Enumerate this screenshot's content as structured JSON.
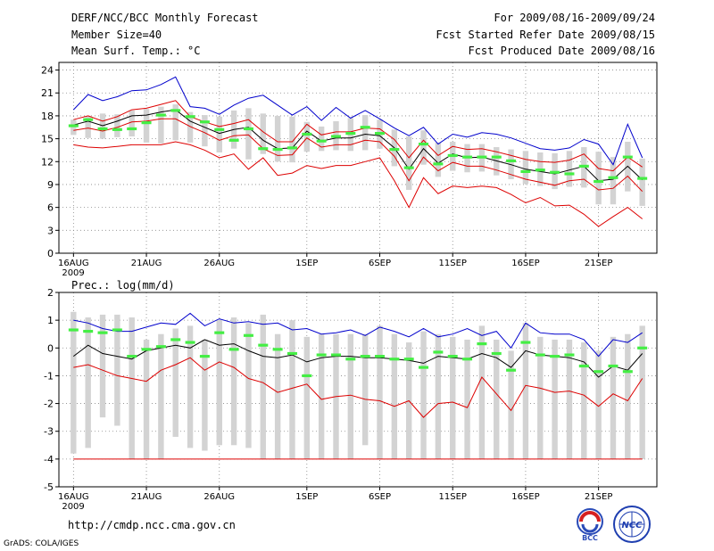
{
  "header": {
    "title": "DERF/NCC/BCC Monthly Forecast",
    "member_size": "Member Size=40",
    "variable": "Mean Surf. Temp.: °C",
    "period": "For 2009/08/16-2009/09/24",
    "fcst_started": "Fcst Started Refer Date 2009/08/15",
    "fcst_produced": "Fcst Produced Date 2009/08/16"
  },
  "footer": {
    "url": "http://cmdp.ncc.cma.gov.cn",
    "grads": "GrADS: COLA/IGES",
    "logo_left": "BCC",
    "logo_right": "NCC"
  },
  "colors": {
    "max_line": "#0000cc",
    "min_line": "#dd0000",
    "mean_line": "#000000",
    "spread_lines": "#dd0000",
    "box": "#d3d3d3",
    "obs": "#44ee44"
  },
  "chart_data": [
    {
      "type": "line",
      "title": "Mean Surf. Temp.: °C",
      "x_ticks": [
        {
          "day": 1,
          "label": "16AUG",
          "sub": "2009"
        },
        {
          "day": 6,
          "label": "21AUG"
        },
        {
          "day": 11,
          "label": "26AUG"
        },
        {
          "day": 17,
          "label": "1SEP"
        },
        {
          "day": 22,
          "label": "6SEP"
        },
        {
          "day": 27,
          "label": "11SEP"
        },
        {
          "day": 32,
          "label": "16SEP"
        },
        {
          "day": 37,
          "label": "21SEP"
        }
      ],
      "xlim": [
        0,
        41
      ],
      "ylim": [
        0,
        25
      ],
      "yticks": [
        0,
        3,
        6,
        9,
        12,
        15,
        18,
        21,
        24
      ],
      "grid": true,
      "days": [
        1,
        2,
        3,
        4,
        5,
        6,
        7,
        8,
        9,
        10,
        11,
        12,
        13,
        14,
        15,
        16,
        17,
        18,
        19,
        20,
        21,
        22,
        23,
        24,
        25,
        26,
        27,
        28,
        29,
        30,
        31,
        32,
        33,
        34,
        35,
        36,
        37,
        38,
        39,
        40
      ],
      "max": [
        18.8,
        20.8,
        20,
        20.5,
        21.3,
        21.4,
        22.1,
        23.1,
        19.2,
        19,
        18.2,
        19.4,
        20.3,
        20.7,
        19.4,
        18.1,
        19.2,
        17.4,
        19.1,
        17.7,
        18.7,
        17.6,
        16.4,
        15.4,
        16.5,
        14.3,
        15.6,
        15.2,
        15.8,
        15.6,
        15.1,
        14.4,
        13.7,
        13.5,
        13.8,
        14.9,
        14.3,
        11.6,
        16.9,
        12.5
      ],
      "p_high": [
        17.5,
        18,
        17.3,
        17.9,
        18.8,
        19,
        19.5,
        20,
        17.9,
        17.2,
        16.6,
        17,
        17.5,
        15.9,
        14.6,
        14.6,
        16.9,
        15.5,
        15.9,
        15.9,
        16.4,
        16.3,
        14.9,
        12.5,
        14.8,
        12.8,
        14,
        13.6,
        13.7,
        13.3,
        12.8,
        12.3,
        12,
        11.9,
        12.2,
        13,
        11.1,
        10.8,
        12.6,
        11.3
      ],
      "mean": [
        16.8,
        17.3,
        16.7,
        17.3,
        18,
        18.1,
        18.5,
        18.8,
        17.3,
        16.5,
        15.7,
        16.2,
        16.5,
        14.8,
        13.7,
        13.8,
        16,
        14.7,
        15.1,
        15.1,
        15.6,
        15.4,
        13.8,
        11,
        13.7,
        11.8,
        13,
        12.5,
        12.6,
        12.1,
        11.6,
        11,
        10.7,
        10.4,
        10.9,
        11.4,
        9.5,
        9.7,
        11.4,
        9.6
      ],
      "p_low": [
        16.1,
        16.4,
        16,
        16.5,
        17.2,
        17.3,
        17.6,
        17.6,
        16.6,
        15.8,
        14.8,
        15.4,
        15.5,
        13.7,
        12.8,
        12.9,
        15.1,
        13.9,
        14.2,
        14.2,
        14.8,
        14.6,
        12.7,
        9.5,
        12.6,
        10.8,
        11.9,
        11.4,
        11.4,
        10.9,
        10.3,
        9.7,
        9.3,
        8.9,
        9.5,
        9.7,
        8.3,
        8.5,
        10.1,
        8.1
      ],
      "min": [
        14.2,
        13.9,
        13.8,
        14,
        14.2,
        14.2,
        14.2,
        14.6,
        14.2,
        13.5,
        12.5,
        13,
        11,
        12.5,
        10.2,
        10.5,
        11.5,
        11.1,
        11.5,
        11.5,
        12,
        12.5,
        9.5,
        6,
        9.9,
        7.8,
        8.8,
        8.6,
        8.8,
        8.6,
        7.7,
        6.6,
        7.3,
        6.2,
        6.3,
        5.1,
        3.5,
        4.8,
        6,
        4.5
      ],
      "box_high": [
        17.5,
        18,
        18.3,
        18.2,
        18.7,
        18.9,
        19.2,
        19.5,
        18.5,
        18.1,
        17.9,
        18.7,
        19,
        18.3,
        18,
        17.9,
        17.2,
        16.6,
        17.3,
        17.7,
        18.1,
        17.5,
        16.2,
        15.3,
        16.1,
        14.5,
        14.6,
        14.3,
        14.3,
        13.9,
        13.6,
        13.4,
        13.2,
        13.1,
        13.4,
        13.9,
        13.3,
        12.6,
        14.6,
        12.4
      ],
      "box_low": [
        15.5,
        15.1,
        15,
        15.2,
        15.3,
        14.5,
        14.4,
        14.8,
        14.5,
        14,
        13.2,
        13.7,
        12.3,
        13,
        12,
        11.9,
        13.3,
        13.4,
        13.5,
        13.4,
        13.5,
        13.7,
        11.4,
        8.3,
        11.6,
        10,
        10.8,
        10.6,
        10.7,
        10.2,
        9.7,
        9.1,
        8.8,
        8.4,
        8.7,
        8.6,
        6.4,
        6.4,
        8.1,
        6.2
      ],
      "obs": [
        16.7,
        17.5,
        16.3,
        16.2,
        16.3,
        17.1,
        18.1,
        18.7,
        17.9,
        17.2,
        16.2,
        14.8,
        16.3,
        13.7,
        13.6,
        13.8,
        15.6,
        14.7,
        15.3,
        15.7,
        16.5,
        15.7,
        13.6,
        11.2,
        14.3,
        11.7,
        12.8,
        12.6,
        12.6,
        12.6,
        12.1,
        10.7,
        10.9,
        10.6,
        10.4,
        11.4,
        9.4,
        9.9,
        12.6,
        9.8
      ]
    },
    {
      "type": "line",
      "title": "Prec.: log(mm/d)",
      "x_ticks": [
        {
          "day": 1,
          "label": "16AUG",
          "sub": "2009"
        },
        {
          "day": 6,
          "label": "21AUG"
        },
        {
          "day": 11,
          "label": "26AUG"
        },
        {
          "day": 17,
          "label": "1SEP"
        },
        {
          "day": 22,
          "label": "6SEP"
        },
        {
          "day": 27,
          "label": "11SEP"
        },
        {
          "day": 32,
          "label": "16SEP"
        },
        {
          "day": 37,
          "label": "21SEP"
        }
      ],
      "xlim": [
        0,
        41
      ],
      "ylim": [
        -5,
        2
      ],
      "yticks": [
        -5,
        -4,
        -3,
        -2,
        -1,
        0,
        1,
        2
      ],
      "grid": true,
      "days": [
        1,
        2,
        3,
        4,
        5,
        6,
        7,
        8,
        9,
        10,
        11,
        12,
        13,
        14,
        15,
        16,
        17,
        18,
        19,
        20,
        21,
        22,
        23,
        24,
        25,
        26,
        27,
        28,
        29,
        30,
        31,
        32,
        33,
        34,
        35,
        36,
        37,
        38,
        39,
        40
      ],
      "max": [
        1,
        0.9,
        0.7,
        0.6,
        0.6,
        0.75,
        0.9,
        0.85,
        1.25,
        0.8,
        1.05,
        0.9,
        0.95,
        0.85,
        0.9,
        0.65,
        0.7,
        0.5,
        0.55,
        0.65,
        0.45,
        0.75,
        0.6,
        0.4,
        0.7,
        0.4,
        0.5,
        0.7,
        0.45,
        0.6,
        0,
        0.9,
        0.55,
        0.5,
        0.5,
        0.3,
        -0.3,
        0.3,
        0.2,
        0.55
      ],
      "mean": [
        -0.3,
        0.1,
        -0.2,
        -0.3,
        -0.4,
        -0.1,
        0,
        0.1,
        0,
        0.3,
        0.1,
        0.15,
        -0.1,
        -0.3,
        -0.35,
        -0.25,
        -0.5,
        -0.35,
        -0.3,
        -0.3,
        -0.35,
        -0.35,
        -0.4,
        -0.45,
        -0.55,
        -0.3,
        -0.35,
        -0.4,
        -0.2,
        -0.35,
        -0.7,
        -0.1,
        -0.25,
        -0.3,
        -0.35,
        -0.5,
        -1.05,
        -0.65,
        -0.8,
        -0.2
      ],
      "p_low": [
        -0.7,
        -0.6,
        -0.8,
        -1,
        -1.1,
        -1.2,
        -0.8,
        -0.6,
        -0.35,
        -0.8,
        -0.5,
        -0.7,
        -1.1,
        -1.25,
        -1.6,
        -1.45,
        -1.3,
        -1.85,
        -1.75,
        -1.7,
        -1.85,
        -1.9,
        -2.1,
        -1.9,
        -2.5,
        -2,
        -1.95,
        -2.15,
        -1.05,
        -1.65,
        -2.25,
        -1.35,
        -1.45,
        -1.6,
        -1.55,
        -1.7,
        -2.1,
        -1.65,
        -1.9,
        -1.1
      ],
      "min": [
        -4,
        -4,
        -4,
        -4,
        -4,
        -4,
        -4,
        -4,
        -4,
        -4,
        -4,
        -4,
        -4,
        -4,
        -4,
        -4,
        -4,
        -4,
        -4,
        -4,
        -4,
        -4,
        -4,
        -4,
        -4,
        -4,
        -4,
        -4,
        -4,
        -4,
        -4,
        -4,
        -4,
        -4,
        -4,
        -4,
        -4,
        -4,
        -4,
        -4
      ],
      "box_high": [
        1.3,
        1.1,
        1.2,
        1.2,
        1.1,
        0.3,
        0.5,
        0.7,
        0.8,
        0.3,
        1,
        1.1,
        0.9,
        1.2,
        0.5,
        1,
        0.4,
        0.5,
        0.5,
        0.5,
        0.5,
        0.8,
        0.5,
        0.2,
        0.6,
        0.5,
        0.4,
        0.3,
        0.8,
        0.3,
        -0.1,
        0.9,
        0.4,
        0.3,
        0.3,
        0.2,
        -0.1,
        0.4,
        0.5,
        0.8
      ],
      "box_low": [
        -3.8,
        -3.6,
        -2.5,
        -2.8,
        -4,
        -4,
        -4,
        -3.2,
        -3.6,
        -3.7,
        -3.5,
        -3.5,
        -3.6,
        -4,
        -4,
        -4,
        -4,
        -4,
        -4,
        -4,
        -3.5,
        -4,
        -4,
        -4,
        -4,
        -4,
        -4,
        -4,
        -4,
        -4,
        -4,
        -4,
        -4,
        -4,
        -4,
        -4,
        -4,
        -4,
        -4,
        -4
      ],
      "obs": [
        0.65,
        0.6,
        0.55,
        0.65,
        -0.3,
        -0.05,
        0.05,
        0.3,
        0.2,
        -0.3,
        0.55,
        -0.05,
        0.45,
        0.1,
        -0.05,
        -0.2,
        -1,
        -0.25,
        -0.25,
        -0.4,
        -0.3,
        -0.3,
        -0.4,
        -0.4,
        -0.7,
        -0.15,
        -0.3,
        -0.4,
        0.15,
        -0.2,
        -0.8,
        0.2,
        -0.25,
        -0.3,
        -0.25,
        -0.65,
        -0.85,
        -0.65,
        -0.85,
        0
      ]
    }
  ]
}
